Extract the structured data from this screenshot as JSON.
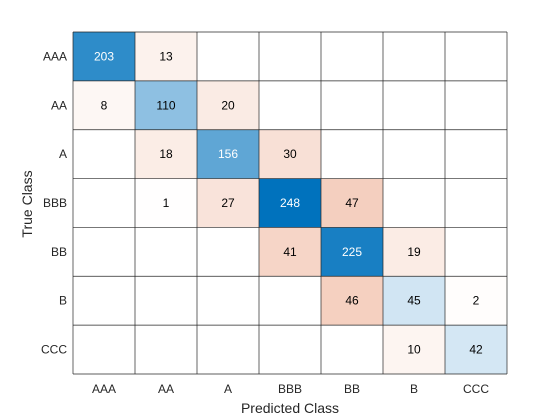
{
  "chart_data": {
    "type": "heatmap",
    "subtype": "confusion-matrix",
    "title": "",
    "xlabel": "Predicted Class",
    "ylabel": "True Class",
    "classes": [
      "AAA",
      "AA",
      "A",
      "BBB",
      "BB",
      "B",
      "CCC"
    ],
    "matrix": [
      [
        203,
        13,
        null,
        null,
        null,
        null,
        null
      ],
      [
        8,
        110,
        20,
        null,
        null,
        null,
        null
      ],
      [
        null,
        18,
        156,
        30,
        null,
        null,
        null
      ],
      [
        null,
        1,
        27,
        248,
        47,
        null,
        null
      ],
      [
        null,
        null,
        null,
        41,
        225,
        19,
        null
      ],
      [
        null,
        null,
        null,
        null,
        46,
        45,
        2
      ],
      [
        null,
        null,
        null,
        null,
        null,
        10,
        42
      ]
    ],
    "colors": {
      "diagonal_high": "#0072BD",
      "diagonal_low": "#FFFFFF",
      "offdiagonal_high": "#D95319",
      "offdiagonal_low": "#FFFFFF",
      "grid": "#262626",
      "text_dark": "#000000",
      "text_light": "#FFFFFF"
    },
    "grid": true
  }
}
